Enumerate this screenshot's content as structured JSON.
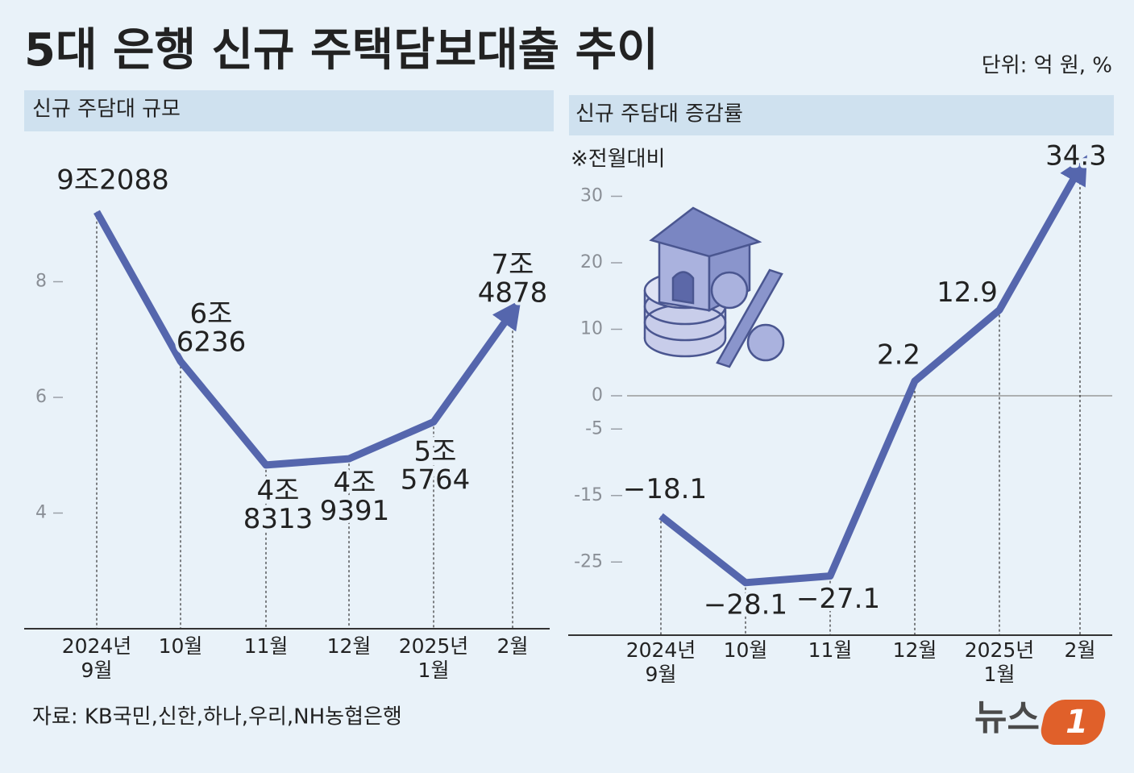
{
  "title": "5대 은행 신규 주택담보대출 추이",
  "unit": "단위: 억 원, %",
  "source": "자료: KB국민,신한,하나,우리,NH농협은행",
  "logo": {
    "text": "뉴스",
    "badge": "1"
  },
  "chart_data": [
    {
      "type": "line",
      "title": "신규 주담대 규모",
      "categories": [
        "2024년 9월",
        "10월",
        "11월",
        "12월",
        "2025년 1월",
        "2월"
      ],
      "values": [
        9.2088,
        6.6236,
        4.8313,
        4.9391,
        5.5764,
        7.4878
      ],
      "value_labels": [
        "9조2088",
        "6조6236",
        "4조8313",
        "4조9391",
        "5조5764",
        "7조4878"
      ],
      "color": "#5566ad",
      "ylim": [
        2,
        10
      ],
      "yticks": [
        4,
        6,
        8
      ]
    },
    {
      "type": "line",
      "title": "신규 주담대 증감률",
      "subtitle": "※전월대비",
      "categories": [
        "2024년 9월",
        "10월",
        "11월",
        "12월",
        "2025년 1월",
        "2월"
      ],
      "values": [
        -18.1,
        -28.1,
        -27.1,
        2.2,
        12.9,
        34.3
      ],
      "value_labels": [
        "−18.1",
        "−28.1",
        "−27.1",
        "2.2",
        "12.9",
        "34.3"
      ],
      "color": "#5566ad",
      "ylim": [
        -36,
        38
      ],
      "yticks": [
        -25,
        -15,
        -5,
        0,
        10,
        20,
        30
      ]
    }
  ]
}
